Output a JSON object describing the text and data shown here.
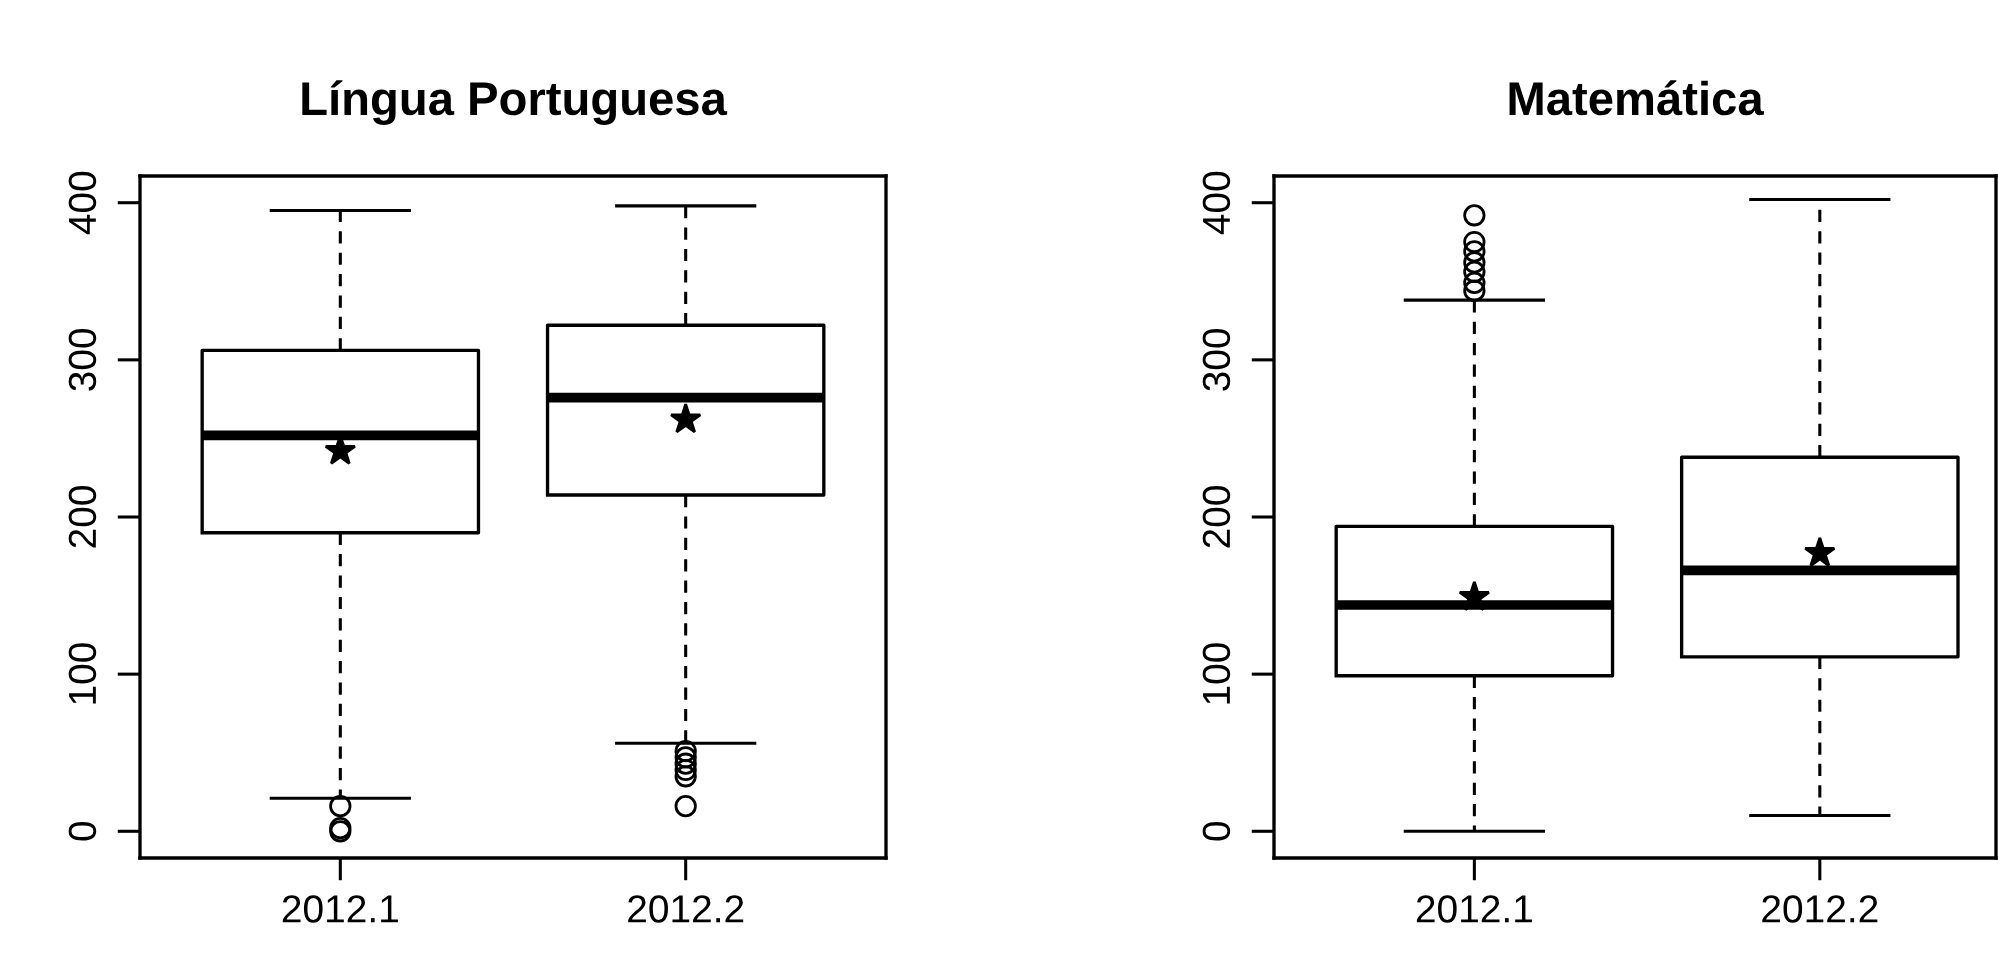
{
  "chart_data": [
    {
      "type": "box",
      "title": "Língua Portuguesa",
      "categories": [
        "2012.1",
        "2012.2"
      ],
      "ylim": [
        -17,
        417
      ],
      "yticks": [
        0,
        100,
        200,
        300,
        400
      ],
      "grid": false,
      "marker": "circle",
      "boxes": [
        {
          "low": 21,
          "q1": 190,
          "median": 252,
          "q3": 306,
          "high": 395,
          "mean": 242,
          "outliers": [
            16,
            2,
            0
          ]
        },
        {
          "low": 56,
          "q1": 214,
          "median": 276,
          "q3": 322,
          "high": 398,
          "mean": 262,
          "outliers": [
            51,
            47,
            43,
            39,
            35,
            16
          ]
        }
      ]
    },
    {
      "type": "box",
      "title": "Matemática",
      "categories": [
        "2012.1",
        "2012.2"
      ],
      "ylim": [
        -17,
        417
      ],
      "yticks": [
        0,
        100,
        200,
        300,
        400
      ],
      "grid": false,
      "marker": "circle",
      "boxes": [
        {
          "low": 0,
          "q1": 99,
          "median": 144,
          "q3": 194,
          "high": 338,
          "mean": 149,
          "outliers": [
            392,
            375,
            369,
            362,
            356,
            349,
            344
          ]
        },
        {
          "low": 10,
          "q1": 111,
          "median": 166,
          "q3": 238,
          "high": 402,
          "mean": 177
        }
      ]
    }
  ]
}
